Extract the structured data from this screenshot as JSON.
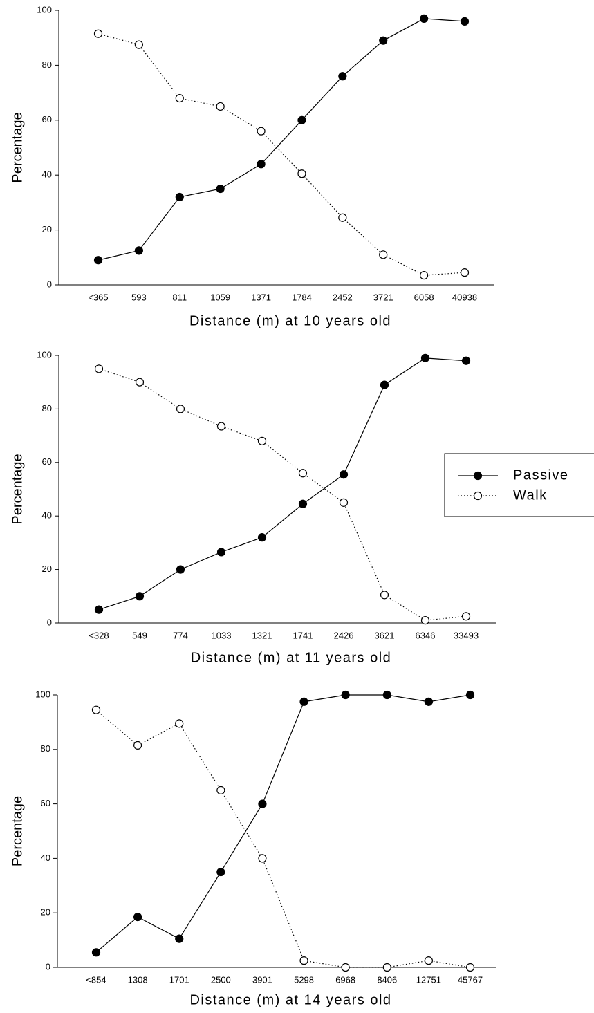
{
  "chart_data": [
    {
      "type": "line",
      "xlabel": "Distance (m) at 10 years old",
      "ylabel": "Percentage",
      "categories": [
        "<365",
        "593",
        "811",
        "1059",
        "1371",
        "1784",
        "2452",
        "3721",
        "6058",
        "40938"
      ],
      "series": [
        {
          "color": "#000000",
          "line": "solid",
          "marker": "filled",
          "values": [
            9,
            12.5,
            32,
            35,
            44,
            60,
            76,
            89,
            97,
            96
          ]
        },
        {
          "color": "#000000",
          "line": "dotted",
          "marker": "open",
          "values": [
            91.5,
            87.5,
            68,
            65,
            56,
            40.5,
            24.5,
            11,
            3.5,
            4.5
          ]
        }
      ],
      "ylim": [
        0,
        100
      ],
      "yticks": [
        0,
        20,
        40,
        60,
        80,
        100
      ]
    },
    {
      "type": "line",
      "xlabel": "Distance (m) at 11 years old",
      "ylabel": "Percentage",
      "categories": [
        "<328",
        "549",
        "774",
        "1033",
        "1321",
        "1741",
        "2426",
        "3621",
        "6346",
        "33493"
      ],
      "series": [
        {
          "name": "Passive",
          "color": "#000000",
          "line": "solid",
          "marker": "filled",
          "values": [
            5,
            10,
            20,
            26.5,
            32,
            44.5,
            55.5,
            89,
            99,
            98
          ]
        },
        {
          "name": "Walk",
          "color": "#000000",
          "line": "dotted",
          "marker": "open",
          "values": [
            95,
            90,
            80,
            73.5,
            68,
            56,
            45,
            10.5,
            1,
            2.5
          ]
        }
      ],
      "ylim": [
        0,
        100
      ],
      "yticks": [
        0,
        20,
        40,
        60,
        80,
        100
      ],
      "legend": "right"
    },
    {
      "type": "line",
      "xlabel": "Distance (m) at 14 years old",
      "ylabel": "Percentage",
      "categories": [
        "<854",
        "1308",
        "1701",
        "2500",
        "3901",
        "5298",
        "6968",
        "8406",
        "12751",
        "45767"
      ],
      "series": [
        {
          "color": "#000000",
          "line": "solid",
          "marker": "filled",
          "values": [
            5.5,
            18.5,
            10.5,
            35,
            60,
            97.5,
            100,
            100,
            97.5,
            100
          ]
        },
        {
          "color": "#000000",
          "line": "dotted",
          "marker": "open",
          "values": [
            94.5,
            81.5,
            89.5,
            65,
            40,
            2.5,
            0,
            0,
            2.5,
            0
          ]
        }
      ],
      "ylim": [
        0,
        100
      ],
      "yticks": [
        0,
        20,
        40,
        60,
        80,
        100
      ]
    }
  ]
}
